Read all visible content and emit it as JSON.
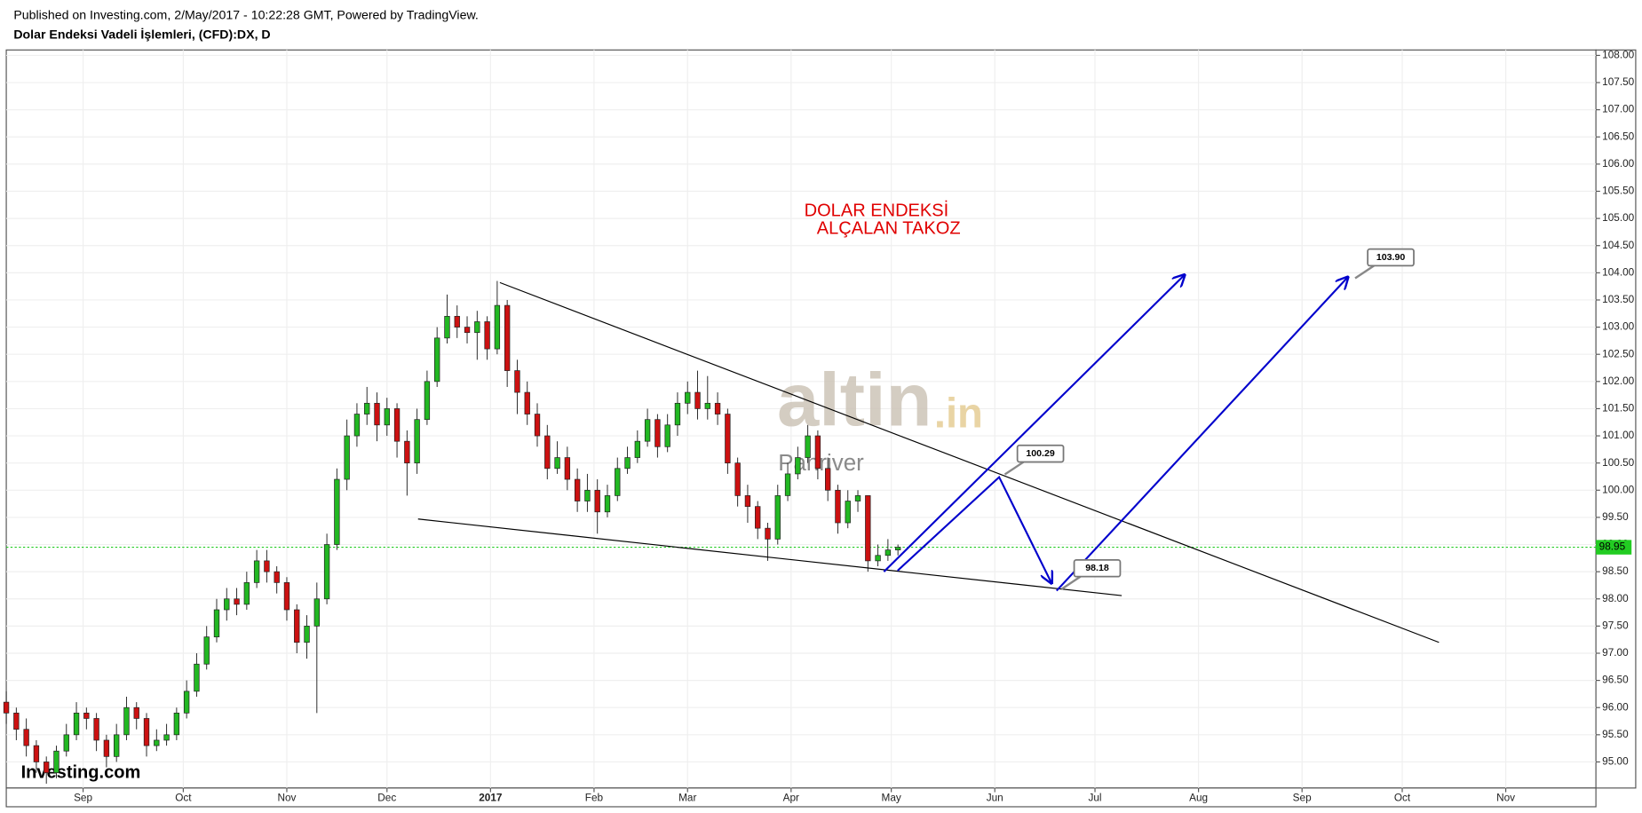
{
  "header": {
    "published": "Published on Investing.com, 2/May/2017 - 10:22:28 GMT, Powered by TradingView.",
    "symbol": "Dolar Endeksi Vadeli İşlemleri, (CFD):DX, D"
  },
  "chart_data": {
    "type": "candlestick",
    "annotation": [
      "DOLAR ENDEKSİ",
      "ALÇALAN TAKOZ"
    ],
    "watermark": {
      "main": "altin",
      "suffix": ".in",
      "sub": "Panriver"
    },
    "logo": "Investing.com",
    "up_color": "#22b822",
    "down_color": "#cc1111",
    "grid": true,
    "xlim": [
      8,
      484
    ],
    "ylim": [
      94.52,
      108.1
    ],
    "xticks": [
      {
        "value": 31,
        "label": "Sep"
      },
      {
        "value": 61,
        "label": "Oct"
      },
      {
        "value": 92,
        "label": "Nov"
      },
      {
        "value": 122,
        "label": "Dec"
      },
      {
        "value": 153,
        "label": "2017"
      },
      {
        "value": 184,
        "label": "Feb"
      },
      {
        "value": 212,
        "label": "Mar"
      },
      {
        "value": 243,
        "label": "Apr"
      },
      {
        "value": 273,
        "label": "May"
      },
      {
        "value": 304,
        "label": "Jun"
      },
      {
        "value": 334,
        "label": "Jul"
      },
      {
        "value": 365,
        "label": "Aug"
      },
      {
        "value": 396,
        "label": "Sep"
      },
      {
        "value": 426,
        "label": "Oct"
      },
      {
        "value": 457,
        "label": "Nov"
      }
    ],
    "yticks": [
      {
        "value": 95,
        "label": "95.00"
      },
      {
        "value": 95.5,
        "label": "95.50"
      },
      {
        "value": 96,
        "label": "96.00"
      },
      {
        "value": 96.5,
        "label": "96.50"
      },
      {
        "value": 97,
        "label": "97.00"
      },
      {
        "value": 97.5,
        "label": "97.50"
      },
      {
        "value": 98,
        "label": "98.00"
      },
      {
        "value": 98.5,
        "label": "98.50"
      },
      {
        "value": 99,
        "label": "99.00"
      },
      {
        "value": 99.5,
        "label": "99.50"
      },
      {
        "value": 100,
        "label": "100.00"
      },
      {
        "value": 100.5,
        "label": "100.50"
      },
      {
        "value": 101,
        "label": "101.00"
      },
      {
        "value": 101.5,
        "label": "101.50"
      },
      {
        "value": 102,
        "label": "102.00"
      },
      {
        "value": 102.5,
        "label": "102.50"
      },
      {
        "value": 103,
        "label": "103.00"
      },
      {
        "value": 103.5,
        "label": "103.50"
      },
      {
        "value": 104,
        "label": "104.00"
      },
      {
        "value": 104.5,
        "label": "104.50"
      },
      {
        "value": 105,
        "label": "105.00"
      },
      {
        "value": 105.5,
        "label": "105.50"
      },
      {
        "value": 106,
        "label": "106.00"
      },
      {
        "value": 106.5,
        "label": "106.50"
      },
      {
        "value": 107,
        "label": "107.00"
      },
      {
        "value": 107.5,
        "label": "107.50"
      },
      {
        "value": 108,
        "label": "108.00"
      }
    ],
    "x": [
      8,
      11,
      14,
      17,
      20,
      23,
      26,
      29,
      32,
      35,
      38,
      41,
      44,
      47,
      50,
      53,
      56,
      59,
      62,
      65,
      68,
      71,
      74,
      77,
      80,
      83,
      86,
      89,
      92,
      95,
      98,
      101,
      104,
      107,
      110,
      113,
      116,
      119,
      122,
      125,
      128,
      131,
      134,
      137,
      140,
      143,
      146,
      149,
      152,
      155,
      158,
      161,
      164,
      167,
      170,
      173,
      176,
      179,
      182,
      185,
      188,
      191,
      194,
      197,
      200,
      203,
      206,
      209,
      212,
      215,
      218,
      221,
      224,
      227,
      230,
      233,
      236,
      239,
      242,
      245,
      248,
      251,
      254,
      257,
      260,
      263,
      266,
      269,
      272,
      275
    ],
    "open": [
      96.1,
      95.9,
      95.6,
      95.3,
      95.0,
      94.8,
      95.2,
      95.5,
      95.9,
      95.8,
      95.4,
      95.1,
      95.5,
      96.0,
      95.8,
      95.3,
      95.4,
      95.5,
      95.9,
      96.3,
      96.8,
      97.3,
      97.8,
      98.0,
      97.9,
      98.3,
      98.7,
      98.5,
      98.3,
      97.8,
      97.2,
      97.5,
      98.0,
      99.0,
      100.2,
      101.0,
      101.4,
      101.6,
      101.2,
      101.5,
      100.9,
      100.5,
      101.3,
      102.0,
      102.8,
      103.2,
      103.0,
      102.9,
      103.1,
      102.6,
      103.4,
      102.2,
      101.8,
      101.4,
      101.0,
      100.4,
      100.6,
      100.2,
      99.8,
      100.0,
      99.6,
      99.9,
      100.4,
      100.6,
      100.9,
      101.3,
      100.8,
      101.2,
      101.6,
      101.8,
      101.5,
      101.6,
      101.4,
      100.5,
      99.9,
      99.7,
      99.3,
      99.1,
      99.9,
      100.3,
      100.6,
      101.0,
      100.4,
      100.0,
      99.4,
      99.8,
      99.9,
      98.7,
      98.8,
      98.9
    ],
    "high": [
      96.3,
      96.0,
      95.8,
      95.4,
      95.1,
      95.3,
      95.7,
      96.1,
      96.0,
      95.9,
      95.5,
      95.7,
      96.2,
      96.1,
      95.9,
      95.6,
      95.7,
      96.0,
      96.5,
      97.0,
      97.5,
      98.0,
      98.2,
      98.2,
      98.5,
      98.9,
      98.9,
      98.6,
      98.4,
      97.9,
      97.7,
      98.3,
      99.2,
      100.4,
      101.3,
      101.6,
      101.9,
      101.8,
      101.7,
      101.6,
      101.1,
      101.5,
      102.2,
      103.0,
      103.6,
      103.4,
      103.2,
      103.3,
      103.2,
      103.85,
      103.5,
      102.4,
      102.0,
      101.6,
      101.2,
      100.9,
      100.8,
      100.4,
      100.3,
      100.2,
      100.1,
      100.6,
      100.8,
      101.1,
      101.5,
      101.4,
      101.4,
      101.8,
      102.0,
      102.2,
      102.1,
      101.8,
      101.5,
      100.6,
      100.1,
      99.8,
      99.4,
      100.1,
      100.5,
      100.8,
      101.2,
      101.1,
      100.6,
      100.1,
      100.0,
      100.0,
      99.9,
      99.0,
      99.1,
      99.0
    ],
    "low": [
      95.7,
      95.4,
      95.1,
      94.8,
      94.6,
      94.7,
      95.1,
      95.4,
      95.6,
      95.2,
      94.9,
      95.0,
      95.4,
      95.6,
      95.1,
      95.2,
      95.3,
      95.4,
      95.8,
      96.2,
      96.7,
      97.2,
      97.6,
      97.7,
      97.8,
      98.2,
      98.3,
      98.1,
      97.6,
      97.0,
      96.9,
      95.9,
      97.9,
      98.9,
      100.0,
      100.8,
      101.2,
      100.9,
      101.0,
      100.6,
      99.9,
      100.3,
      101.2,
      101.9,
      102.7,
      102.8,
      102.7,
      102.4,
      102.4,
      102.5,
      101.9,
      101.4,
      101.2,
      100.8,
      100.2,
      100.3,
      100.0,
      99.6,
      99.6,
      99.2,
      99.5,
      99.8,
      100.3,
      100.5,
      100.8,
      100.6,
      100.7,
      101.0,
      101.4,
      101.3,
      101.3,
      101.2,
      100.3,
      99.7,
      99.4,
      99.1,
      98.7,
      99.0,
      99.8,
      100.2,
      100.5,
      100.2,
      99.8,
      99.2,
      99.3,
      99.6,
      98.5,
      98.6,
      98.7,
      98.8
    ],
    "close": [
      95.9,
      95.6,
      95.3,
      95.0,
      94.8,
      95.2,
      95.5,
      95.9,
      95.8,
      95.4,
      95.1,
      95.5,
      96.0,
      95.8,
      95.3,
      95.4,
      95.5,
      95.9,
      96.3,
      96.8,
      97.3,
      97.8,
      98.0,
      97.9,
      98.3,
      98.7,
      98.5,
      98.3,
      97.8,
      97.2,
      97.5,
      98.0,
      99.0,
      100.2,
      101.0,
      101.4,
      101.6,
      101.2,
      101.5,
      100.9,
      100.5,
      101.3,
      102.0,
      102.8,
      103.2,
      103.0,
      102.9,
      103.1,
      102.6,
      103.4,
      102.2,
      101.8,
      101.4,
      101.0,
      100.4,
      100.6,
      100.2,
      99.8,
      100.0,
      99.6,
      99.9,
      100.4,
      100.6,
      100.9,
      101.3,
      100.8,
      101.2,
      101.6,
      101.8,
      101.5,
      101.6,
      101.4,
      100.5,
      99.9,
      99.7,
      99.3,
      99.1,
      99.9,
      100.3,
      100.6,
      101.0,
      100.4,
      100.0,
      99.4,
      99.8,
      99.9,
      98.7,
      98.8,
      98.9,
      98.95
    ],
    "last_price": 98.95,
    "last_price_color": "#22cc22",
    "trendlines": [
      {
        "color": "#000000",
        "x": [
          155.8,
          437
        ],
        "y": [
          103.82,
          97.2
        ]
      },
      {
        "color": "#000000",
        "x": [
          131.3,
          342
        ],
        "y": [
          99.47,
          98.06
        ]
      }
    ],
    "arrows": [
      {
        "color": "#0000cc",
        "x": [
          270.8,
          360.8
        ],
        "y": [
          98.5,
          103.96
        ]
      },
      {
        "color": "#0000cc",
        "x": [
          274.9,
          305.3,
          321
        ],
        "y": [
          98.52,
          100.24,
          98.29
        ]
      },
      {
        "color": "#0000cc",
        "x": [
          322.5,
          409.7
        ],
        "y": [
          98.15,
          103.92
        ]
      }
    ],
    "callouts": {
      "x": [
        307,
        324,
        411.9
      ],
      "values": [
        100.29,
        98.18,
        103.9
      ],
      "value_labels": [
        "100.29",
        "98.18",
        "103.90"
      ]
    }
  }
}
